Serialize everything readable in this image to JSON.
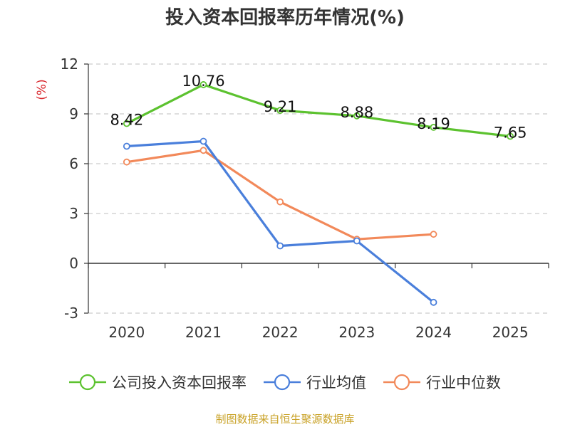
{
  "chart_data": {
    "type": "line",
    "title": "投入资本回报率历年情况(%)",
    "ylabel": "(%)",
    "categories": [
      "2020",
      "2021",
      "2022",
      "2023",
      "2024",
      "2025"
    ],
    "ylim": [
      -3,
      12
    ],
    "yticks": [
      "12",
      "9",
      "6",
      "3",
      "0",
      "-3"
    ],
    "ytick_values": [
      12,
      9,
      6,
      3,
      0,
      -3
    ],
    "grid": true,
    "legend_position": "bottom",
    "series": [
      {
        "name": "公司投入资本回报率",
        "color": "#5cc22f",
        "values": [
          8.42,
          10.76,
          9.21,
          8.88,
          8.19,
          7.65
        ],
        "labels": [
          "8.42",
          "10.76",
          "9.21",
          "8.88",
          "8.19",
          "7.65"
        ]
      },
      {
        "name": "行业均值",
        "color": "#4a7fdb",
        "values": [
          7.05,
          7.35,
          1.05,
          1.35,
          -2.35,
          null
        ],
        "labels": []
      },
      {
        "name": "行业中位数",
        "color": "#f2895a",
        "values": [
          6.1,
          6.8,
          3.7,
          1.45,
          1.75,
          null
        ],
        "labels": []
      }
    ]
  },
  "source": "制图数据来自恒生聚源数据库",
  "colors": {
    "ylabel": "#d9252b",
    "axis": "#333333",
    "grid": "#cccccc",
    "source": "#c9a227"
  }
}
